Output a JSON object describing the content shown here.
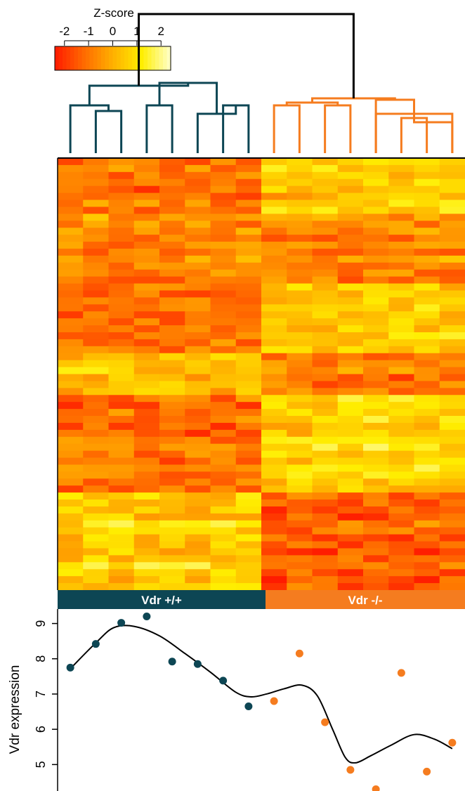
{
  "colors": {
    "wt": "#0d4654",
    "ko": "#f57c1f",
    "dendro_top": "#000000",
    "scale": [
      "#ff1a00",
      "#ff6a00",
      "#ffb000",
      "#ffee00",
      "#ffffcc"
    ]
  },
  "colorkey": {
    "title": "Z-score",
    "ticks": [
      "-2",
      "-1",
      "0",
      "1",
      "2"
    ],
    "range": [
      -2.4,
      2.4
    ]
  },
  "groups": [
    {
      "label": "Vdr +/+",
      "key": "wt"
    },
    {
      "label": "Vdr -/-",
      "key": "ko"
    }
  ],
  "chart_data": [
    {
      "type": "heatmap",
      "title": "",
      "columns": 16,
      "rows": 62,
      "column_groups": [
        "wt",
        "wt",
        "wt",
        "wt",
        "wt",
        "wt",
        "wt",
        "wt",
        "ko",
        "ko",
        "ko",
        "ko",
        "ko",
        "ko",
        "ko",
        "ko"
      ],
      "value_range": [
        -2.4,
        2.4
      ],
      "row_blocks": [
        {
          "rows": 8,
          "wt_mean": -1.1,
          "ko_mean": 0.5
        },
        {
          "rows": 10,
          "wt_mean": -0.6,
          "ko_mean": -0.6
        },
        {
          "rows": 10,
          "wt_mean": -0.9,
          "ko_mean": 0.6
        },
        {
          "rows": 6,
          "wt_mean": 0.3,
          "ko_mean": -0.9
        },
        {
          "rows": 14,
          "wt_mean": -1.1,
          "ko_mean": 0.7
        },
        {
          "rows": 6,
          "wt_mean": 0.7,
          "ko_mean": -1.2
        },
        {
          "rows": 8,
          "wt_mean": 0.6,
          "ko_mean": -1.3
        }
      ]
    },
    {
      "type": "scatter",
      "title": "",
      "xlabel": "",
      "ylabel": "Vdr expression",
      "y_ticks": [
        "5",
        "6",
        "7",
        "8",
        "9"
      ],
      "ylim": [
        4.25,
        9.35
      ],
      "grid": false,
      "series": [
        {
          "group": "wt",
          "x": [
            1,
            2,
            3,
            4,
            5,
            6,
            7,
            8
          ],
          "y": [
            7.75,
            8.42,
            9.02,
            9.2,
            7.92,
            7.85,
            7.38,
            6.65
          ]
        },
        {
          "group": "ko",
          "x": [
            9,
            10,
            11,
            12,
            13,
            14,
            15,
            16
          ],
          "y": [
            6.8,
            8.15,
            6.2,
            4.85,
            4.3,
            7.6,
            4.8,
            5.62
          ]
        }
      ],
      "smooth_line": {
        "x": [
          1,
          2,
          2.7,
          3.5,
          4.5,
          5.5,
          6.5,
          7.5,
          8.1,
          8.7,
          9.4,
          10.1,
          10.7,
          11.3,
          11.8,
          12.2,
          12.8,
          13.6,
          14.5,
          15.3,
          16
        ],
        "y": [
          7.72,
          8.45,
          8.88,
          8.92,
          8.65,
          8.15,
          7.62,
          7.05,
          6.92,
          7.0,
          7.15,
          7.25,
          6.95,
          6.0,
          5.2,
          5.05,
          5.25,
          5.55,
          5.85,
          5.72,
          5.45
        ]
      }
    }
  ]
}
